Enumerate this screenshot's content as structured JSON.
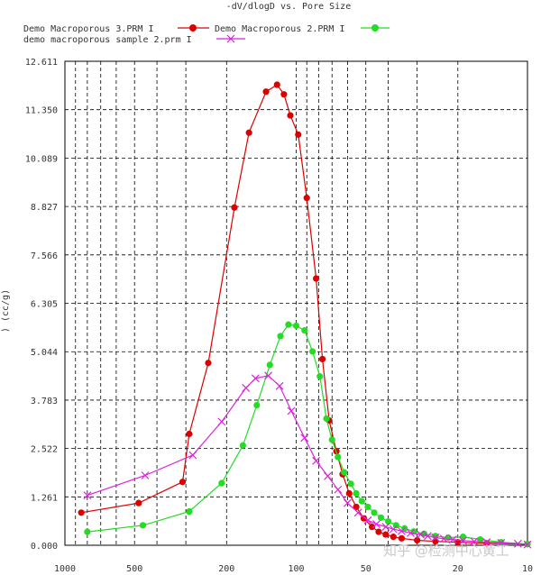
{
  "chart_data": {
    "type": "line",
    "title": "-dV/dlogD vs. Pore Size",
    "ylabel": ") (cc/g)",
    "xlabel": "",
    "x_scale": "log",
    "x_reversed": true,
    "xlim": [
      1000,
      10
    ],
    "ylim": [
      0,
      12.611
    ],
    "y_ticks": [
      0.0,
      1.261,
      2.522,
      3.783,
      5.044,
      6.305,
      7.566,
      8.827,
      10.089,
      11.35,
      12.611
    ],
    "y_tick_labels": [
      "0.000",
      "1.261",
      "2.522",
      "3.783",
      "5.044",
      "6.305",
      "7.566",
      "8.827",
      "10.089",
      "11.350",
      "12.611"
    ],
    "x_ticks": [
      1000,
      500,
      200,
      100,
      50,
      20,
      10
    ],
    "x_tick_labels": [
      "1000",
      "500",
      "200",
      "100",
      "50",
      "20",
      "10"
    ],
    "grid": true,
    "legend_position": "top-left",
    "series": [
      {
        "name": "Demo Macroporous 3.PRM I",
        "color": "#dd0000",
        "marker": "circle",
        "x": [
          1300,
          850,
          480,
          310,
          290,
          240,
          185,
          160,
          135,
          121,
          113,
          106,
          98,
          90,
          82,
          77,
          72,
          67,
          63,
          59,
          55,
          51,
          47,
          44,
          41,
          38,
          35,
          30,
          25,
          20,
          15,
          10
        ],
        "y": [
          0.75,
          0.85,
          1.1,
          1.65,
          2.9,
          4.75,
          8.8,
          10.75,
          11.82,
          12.0,
          11.75,
          11.2,
          10.7,
          9.05,
          6.95,
          4.85,
          3.25,
          2.45,
          1.85,
          1.35,
          1.0,
          0.7,
          0.48,
          0.35,
          0.28,
          0.22,
          0.18,
          0.13,
          0.1,
          0.08,
          0.05,
          0.03
        ]
      },
      {
        "name": "Demo Macroporous 2.PRM I",
        "color": "#22dd22",
        "marker": "circle",
        "x": [
          1300,
          800,
          460,
          290,
          210,
          170,
          148,
          130,
          117,
          108,
          100,
          92,
          85,
          79,
          74,
          70,
          66,
          62,
          58,
          55,
          52,
          49,
          46,
          43,
          40,
          37,
          34,
          31,
          28,
          25,
          22,
          19,
          16,
          13,
          10
        ],
        "y": [
          0.28,
          0.35,
          0.52,
          0.88,
          1.62,
          2.6,
          3.65,
          4.7,
          5.45,
          5.75,
          5.72,
          5.6,
          5.05,
          4.4,
          3.3,
          2.75,
          2.3,
          1.9,
          1.6,
          1.35,
          1.15,
          1.0,
          0.85,
          0.72,
          0.62,
          0.52,
          0.44,
          0.36,
          0.3,
          0.24,
          0.2,
          0.22,
          0.15,
          0.08,
          0.03
        ]
      },
      {
        "name": "demo macroporous sample 2.prm I",
        "color": "#dd22dd",
        "marker": "x",
        "x": [
          1300,
          800,
          450,
          280,
          210,
          165,
          150,
          132,
          118,
          105,
          92,
          82,
          73,
          66,
          60,
          54,
          49,
          45,
          41,
          38,
          35,
          32,
          29,
          27,
          25,
          23,
          21,
          19,
          17,
          15,
          13,
          11,
          10
        ],
        "y": [
          1.0,
          1.3,
          1.82,
          2.35,
          3.22,
          4.1,
          4.35,
          4.42,
          4.15,
          3.5,
          2.8,
          2.2,
          1.8,
          1.45,
          1.1,
          0.85,
          0.65,
          0.55,
          0.48,
          0.42,
          0.37,
          0.32,
          0.28,
          0.24,
          0.2,
          0.17,
          0.15,
          0.12,
          0.1,
          0.08,
          0.06,
          0.04,
          0.02
        ]
      }
    ]
  },
  "watermark": "知乎 @检测中心黄工"
}
